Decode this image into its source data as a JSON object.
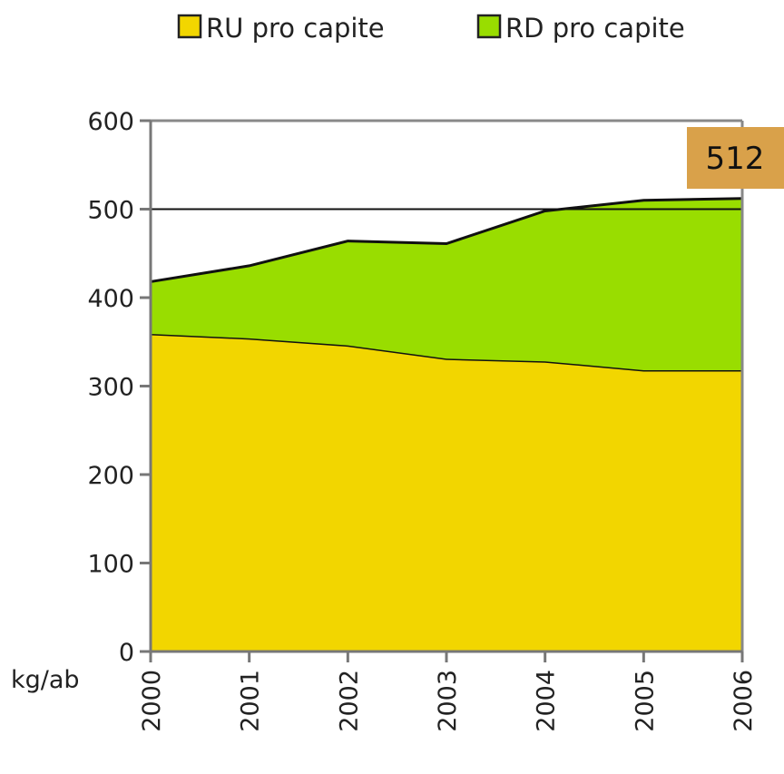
{
  "chart_data": {
    "type": "area",
    "stacked": true,
    "x": [
      2000,
      2001,
      2002,
      2003,
      2004,
      2005,
      2006
    ],
    "series": [
      {
        "name": "RU pro capite",
        "values": [
          359,
          354,
          346,
          331,
          328,
          318,
          318
        ],
        "color": "#F2D600"
      },
      {
        "name": "RD pro capite",
        "values": [
          59,
          82,
          118,
          130,
          170,
          192,
          194
        ],
        "color": "#99DD00"
      }
    ],
    "ylabel": "kg/ab",
    "ylim": [
      0,
      600
    ],
    "yticks": [
      0,
      100,
      200,
      300,
      400,
      500,
      600
    ],
    "gridlines": [
      500
    ],
    "legend": "top",
    "annotation": "512",
    "annotation_color": "#D9A14A"
  }
}
